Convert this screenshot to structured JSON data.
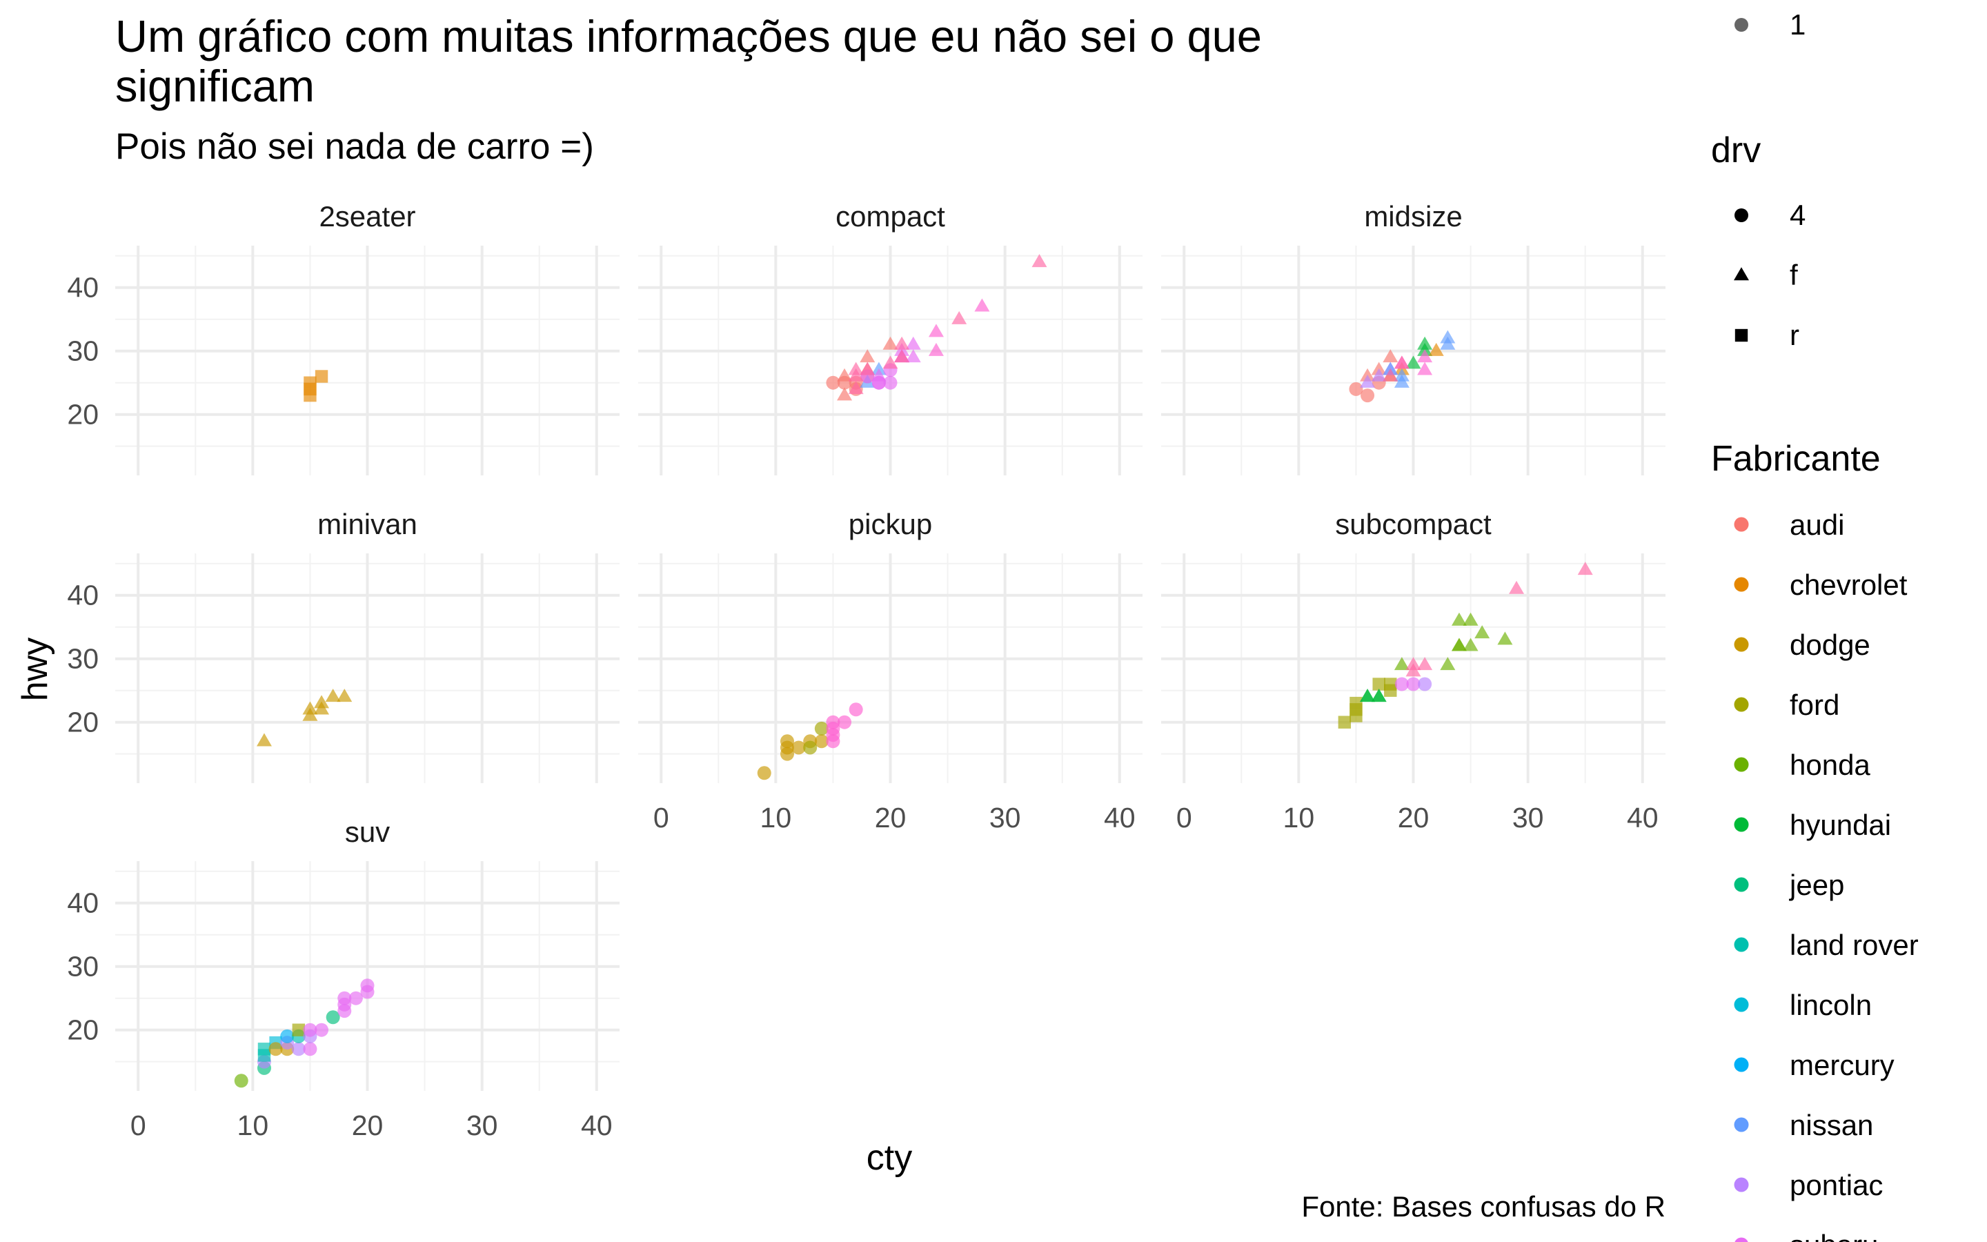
{
  "chart_data": {
    "type": "scatter",
    "title_lines": [
      "Um gráfico com muitas informações que eu não sei o que",
      "significam"
    ],
    "subtitle": "Pois não sei nada de carro =)",
    "caption": "Fonte: Bases confusas do R",
    "xlabel": "cty",
    "ylabel": "hwy",
    "xlim": [
      -2,
      42
    ],
    "ylim": [
      10.4,
      46.6
    ],
    "x_ticks": [
      0,
      10,
      20,
      30,
      40
    ],
    "y_ticks": [
      20,
      30,
      40
    ],
    "grid": true,
    "facets": [
      {
        "name": "2seater",
        "points": [
          {
            "x": 15,
            "y": 23,
            "drv": "r",
            "m": "chevrolet"
          },
          {
            "x": 15,
            "y": 24,
            "drv": "r",
            "m": "chevrolet"
          },
          {
            "x": 15,
            "y": 25,
            "drv": "r",
            "m": "chevrolet"
          },
          {
            "x": 16,
            "y": 26,
            "drv": "r",
            "m": "chevrolet"
          }
        ]
      },
      {
        "name": "compact",
        "points": [
          {
            "x": 16,
            "y": 23,
            "drv": "f",
            "m": "audi"
          },
          {
            "x": 16,
            "y": 26,
            "drv": "f",
            "m": "audi"
          },
          {
            "x": 17,
            "y": 25,
            "drv": "4",
            "m": "audi"
          },
          {
            "x": 18,
            "y": 27,
            "drv": "f",
            "m": "audi"
          },
          {
            "x": 18,
            "y": 29,
            "drv": "f",
            "m": "audi"
          },
          {
            "x": 20,
            "y": 31,
            "drv": "f",
            "m": "audi"
          },
          {
            "x": 21,
            "y": 29,
            "drv": "f",
            "m": "audi"
          },
          {
            "x": 15,
            "y": 25,
            "drv": "4",
            "m": "audi"
          },
          {
            "x": 16,
            "y": 25,
            "drv": "4",
            "m": "audi"
          },
          {
            "x": 17,
            "y": 24,
            "drv": "4",
            "m": "audi"
          },
          {
            "x": 18,
            "y": 26,
            "drv": "4",
            "m": "audi"
          },
          {
            "x": 18,
            "y": 25,
            "drv": "f",
            "m": "nissan"
          },
          {
            "x": 19,
            "y": 27,
            "drv": "f",
            "m": "nissan"
          },
          {
            "x": 21,
            "y": 30,
            "drv": "f",
            "m": "subaru"
          },
          {
            "x": 22,
            "y": 31,
            "drv": "f",
            "m": "subaru"
          },
          {
            "x": 21,
            "y": 29,
            "drv": "f",
            "m": "subaru"
          },
          {
            "x": 22,
            "y": 29,
            "drv": "f",
            "m": "subaru"
          },
          {
            "x": 24,
            "y": 33,
            "drv": "f",
            "m": "toyota"
          },
          {
            "x": 24,
            "y": 30,
            "drv": "f",
            "m": "toyota"
          },
          {
            "x": 26,
            "y": 35,
            "drv": "f",
            "m": "volkswagen"
          },
          {
            "x": 28,
            "y": 37,
            "drv": "f",
            "m": "toyota"
          },
          {
            "x": 33,
            "y": 44,
            "drv": "f",
            "m": "volkswagen"
          },
          {
            "x": 17,
            "y": 27,
            "drv": "f",
            "m": "volkswagen"
          },
          {
            "x": 17,
            "y": 24,
            "drv": "f",
            "m": "volkswagen"
          },
          {
            "x": 18,
            "y": 26,
            "drv": "4",
            "m": "subaru"
          },
          {
            "x": 19,
            "y": 26,
            "drv": "f",
            "m": "subaru"
          },
          {
            "x": 19,
            "y": 25,
            "drv": "4",
            "m": "subaru"
          },
          {
            "x": 20,
            "y": 25,
            "drv": "4",
            "m": "subaru"
          },
          {
            "x": 19,
            "y": 25,
            "drv": "4",
            "m": "subaru"
          },
          {
            "x": 20,
            "y": 27,
            "drv": "4",
            "m": "subaru"
          },
          {
            "x": 20,
            "y": 28,
            "drv": "f",
            "m": "volkswagen"
          },
          {
            "x": 21,
            "y": 29,
            "drv": "f",
            "m": "volkswagen"
          },
          {
            "x": 21,
            "y": 31,
            "drv": "f",
            "m": "volkswagen"
          },
          {
            "x": 17,
            "y": 26,
            "drv": "f",
            "m": "volkswagen"
          },
          {
            "x": 18,
            "y": 27,
            "drv": "f",
            "m": "volkswagen"
          }
        ]
      },
      {
        "name": "midsize",
        "points": [
          {
            "x": 15,
            "y": 24,
            "drv": "4",
            "m": "audi"
          },
          {
            "x": 16,
            "y": 23,
            "drv": "4",
            "m": "audi"
          },
          {
            "x": 17,
            "y": 25,
            "drv": "4",
            "m": "audi"
          },
          {
            "x": 16,
            "y": 26,
            "drv": "f",
            "m": "audi"
          },
          {
            "x": 17,
            "y": 27,
            "drv": "f",
            "m": "audi"
          },
          {
            "x": 18,
            "y": 29,
            "drv": "f",
            "m": "audi"
          },
          {
            "x": 18,
            "y": 26,
            "drv": "f",
            "m": "chevrolet"
          },
          {
            "x": 19,
            "y": 27,
            "drv": "f",
            "m": "chevrolet"
          },
          {
            "x": 21,
            "y": 30,
            "drv": "f",
            "m": "hyundai"
          },
          {
            "x": 21,
            "y": 31,
            "drv": "f",
            "m": "hyundai"
          },
          {
            "x": 20,
            "y": 28,
            "drv": "f",
            "m": "hyundai"
          },
          {
            "x": 18,
            "y": 27,
            "drv": "f",
            "m": "pontiac"
          },
          {
            "x": 17,
            "y": 26,
            "drv": "f",
            "m": "pontiac"
          },
          {
            "x": 16,
            "y": 25,
            "drv": "f",
            "m": "pontiac"
          },
          {
            "x": 19,
            "y": 25,
            "drv": "f",
            "m": "nissan"
          },
          {
            "x": 19,
            "y": 26,
            "drv": "f",
            "m": "nissan"
          },
          {
            "x": 18,
            "y": 27,
            "drv": "f",
            "m": "nissan"
          },
          {
            "x": 23,
            "y": 31,
            "drv": "f",
            "m": "nissan"
          },
          {
            "x": 23,
            "y": 32,
            "drv": "f",
            "m": "nissan"
          },
          {
            "x": 19,
            "y": 28,
            "drv": "f",
            "m": "toyota"
          },
          {
            "x": 21,
            "y": 27,
            "drv": "f",
            "m": "toyota"
          },
          {
            "x": 21,
            "y": 29,
            "drv": "f",
            "m": "toyota"
          },
          {
            "x": 22,
            "y": 30,
            "drv": "f",
            "m": "chevrolet"
          },
          {
            "x": 18,
            "y": 26,
            "drv": "f",
            "m": "volkswagen"
          },
          {
            "x": 19,
            "y": 28,
            "drv": "f",
            "m": "volkswagen"
          }
        ]
      },
      {
        "name": "minivan",
        "points": [
          {
            "x": 11,
            "y": 17,
            "drv": "f",
            "m": "dodge"
          },
          {
            "x": 15,
            "y": 21,
            "drv": "f",
            "m": "dodge"
          },
          {
            "x": 15,
            "y": 22,
            "drv": "f",
            "m": "dodge"
          },
          {
            "x": 16,
            "y": 22,
            "drv": "f",
            "m": "dodge"
          },
          {
            "x": 16,
            "y": 23,
            "drv": "f",
            "m": "dodge"
          },
          {
            "x": 17,
            "y": 24,
            "drv": "f",
            "m": "dodge"
          },
          {
            "x": 18,
            "y": 24,
            "drv": "f",
            "m": "dodge"
          }
        ]
      },
      {
        "name": "pickup",
        "points": [
          {
            "x": 9,
            "y": 12,
            "drv": "4",
            "m": "dodge"
          },
          {
            "x": 11,
            "y": 15,
            "drv": "4",
            "m": "dodge"
          },
          {
            "x": 11,
            "y": 16,
            "drv": "4",
            "m": "dodge"
          },
          {
            "x": 11,
            "y": 17,
            "drv": "4",
            "m": "dodge"
          },
          {
            "x": 12,
            "y": 16,
            "drv": "4",
            "m": "dodge"
          },
          {
            "x": 13,
            "y": 17,
            "drv": "4",
            "m": "dodge"
          },
          {
            "x": 14,
            "y": 17,
            "drv": "4",
            "m": "dodge"
          },
          {
            "x": 13,
            "y": 16,
            "drv": "4",
            "m": "ford"
          },
          {
            "x": 14,
            "y": 19,
            "drv": "4",
            "m": "ford"
          },
          {
            "x": 15,
            "y": 17,
            "drv": "4",
            "m": "toyota"
          },
          {
            "x": 15,
            "y": 18,
            "drv": "4",
            "m": "toyota"
          },
          {
            "x": 15,
            "y": 19,
            "drv": "4",
            "m": "toyota"
          },
          {
            "x": 15,
            "y": 20,
            "drv": "4",
            "m": "toyota"
          },
          {
            "x": 16,
            "y": 20,
            "drv": "4",
            "m": "toyota"
          },
          {
            "x": 17,
            "y": 22,
            "drv": "4",
            "m": "toyota"
          }
        ]
      },
      {
        "name": "subcompact",
        "points": [
          {
            "x": 14,
            "y": 20,
            "drv": "r",
            "m": "ford"
          },
          {
            "x": 15,
            "y": 21,
            "drv": "r",
            "m": "ford"
          },
          {
            "x": 15,
            "y": 22,
            "drv": "r",
            "m": "ford"
          },
          {
            "x": 15,
            "y": 23,
            "drv": "r",
            "m": "ford"
          },
          {
            "x": 17,
            "y": 26,
            "drv": "r",
            "m": "ford"
          },
          {
            "x": 18,
            "y": 25,
            "drv": "r",
            "m": "ford"
          },
          {
            "x": 18,
            "y": 26,
            "drv": "r",
            "m": "ford"
          },
          {
            "x": 16,
            "y": 24,
            "drv": "f",
            "m": "hyundai"
          },
          {
            "x": 17,
            "y": 24,
            "drv": "f",
            "m": "hyundai"
          },
          {
            "x": 17,
            "y": 24,
            "drv": "f",
            "m": "hyundai"
          },
          {
            "x": 16,
            "y": 24,
            "drv": "f",
            "m": "hyundai"
          },
          {
            "x": 19,
            "y": 29,
            "drv": "f",
            "m": "honda"
          },
          {
            "x": 24,
            "y": 32,
            "drv": "f",
            "m": "honda"
          },
          {
            "x": 24,
            "y": 36,
            "drv": "f",
            "m": "honda"
          },
          {
            "x": 25,
            "y": 32,
            "drv": "f",
            "m": "honda"
          },
          {
            "x": 23,
            "y": 29,
            "drv": "f",
            "m": "honda"
          },
          {
            "x": 24,
            "y": 32,
            "drv": "f",
            "m": "honda"
          },
          {
            "x": 25,
            "y": 36,
            "drv": "f",
            "m": "honda"
          },
          {
            "x": 26,
            "y": 34,
            "drv": "f",
            "m": "honda"
          },
          {
            "x": 28,
            "y": 33,
            "drv": "f",
            "m": "honda"
          },
          {
            "x": 19,
            "y": 26,
            "drv": "4",
            "m": "subaru"
          },
          {
            "x": 20,
            "y": 26,
            "drv": "4",
            "m": "subaru"
          },
          {
            "x": 20,
            "y": 28,
            "drv": "f",
            "m": "volkswagen"
          },
          {
            "x": 20,
            "y": 29,
            "drv": "f",
            "m": "volkswagen"
          },
          {
            "x": 21,
            "y": 29,
            "drv": "f",
            "m": "volkswagen"
          },
          {
            "x": 21,
            "y": 26,
            "drv": "4",
            "m": "pontiac"
          },
          {
            "x": 29,
            "y": 41,
            "drv": "f",
            "m": "volkswagen"
          },
          {
            "x": 35,
            "y": 44,
            "drv": "f",
            "m": "volkswagen"
          }
        ]
      },
      {
        "name": "suv",
        "points": [
          {
            "x": 9,
            "y": 12,
            "drv": "4",
            "m": "honda"
          },
          {
            "x": 11,
            "y": 14,
            "drv": "4",
            "m": "jeep"
          },
          {
            "x": 11,
            "y": 15,
            "drv": "4",
            "m": "pontiac"
          },
          {
            "x": 11,
            "y": 16,
            "drv": "r",
            "m": "land rover"
          },
          {
            "x": 11,
            "y": 17,
            "drv": "r",
            "m": "land rover"
          },
          {
            "x": 12,
            "y": 18,
            "drv": "r",
            "m": "lincoln"
          },
          {
            "x": 12,
            "y": 17,
            "drv": "4",
            "m": "dodge"
          },
          {
            "x": 13,
            "y": 17,
            "drv": "4",
            "m": "dodge"
          },
          {
            "x": 13,
            "y": 18,
            "drv": "4",
            "m": "pontiac"
          },
          {
            "x": 13,
            "y": 19,
            "drv": "4",
            "m": "mercury"
          },
          {
            "x": 14,
            "y": 17,
            "drv": "4",
            "m": "pontiac"
          },
          {
            "x": 14,
            "y": 19,
            "drv": "4",
            "m": "land rover"
          },
          {
            "x": 14,
            "y": 20,
            "drv": "r",
            "m": "ford"
          },
          {
            "x": 15,
            "y": 17,
            "drv": "4",
            "m": "subaru"
          },
          {
            "x": 15,
            "y": 19,
            "drv": "4",
            "m": "pontiac"
          },
          {
            "x": 15,
            "y": 20,
            "drv": "4",
            "m": "subaru"
          },
          {
            "x": 16,
            "y": 20,
            "drv": "4",
            "m": "subaru"
          },
          {
            "x": 17,
            "y": 22,
            "drv": "4",
            "m": "jeep"
          },
          {
            "x": 18,
            "y": 23,
            "drv": "4",
            "m": "subaru"
          },
          {
            "x": 18,
            "y": 24,
            "drv": "4",
            "m": "subaru"
          },
          {
            "x": 18,
            "y": 25,
            "drv": "4",
            "m": "subaru"
          },
          {
            "x": 19,
            "y": 25,
            "drv": "4",
            "m": "subaru"
          },
          {
            "x": 20,
            "y": 26,
            "drv": "4",
            "m": "subaru"
          },
          {
            "x": 20,
            "y": 27,
            "drv": "4",
            "m": "subaru"
          }
        ]
      }
    ],
    "legend_size": {
      "label": "1"
    },
    "legend_drv": {
      "title": "drv",
      "items": [
        {
          "label": "4",
          "shape": "circle"
        },
        {
          "label": "f",
          "shape": "triangle"
        },
        {
          "label": "r",
          "shape": "square"
        }
      ]
    },
    "legend_fabricante": {
      "title": "Fabricante",
      "items": [
        {
          "label": "audi",
          "color": "#F8766D"
        },
        {
          "label": "chevrolet",
          "color": "#E58700"
        },
        {
          "label": "dodge",
          "color": "#C99800"
        },
        {
          "label": "ford",
          "color": "#A3A500"
        },
        {
          "label": "honda",
          "color": "#6BB100"
        },
        {
          "label": "hyundai",
          "color": "#00BA38"
        },
        {
          "label": "jeep",
          "color": "#00BF7D"
        },
        {
          "label": "land rover",
          "color": "#00C0AF"
        },
        {
          "label": "lincoln",
          "color": "#00BCD8"
        },
        {
          "label": "mercury",
          "color": "#00B0F6"
        },
        {
          "label": "nissan",
          "color": "#619CFF"
        },
        {
          "label": "pontiac",
          "color": "#B983FF"
        },
        {
          "label": "subaru",
          "color": "#E76BF3"
        }
      ]
    },
    "extra_colors": {
      "toyota": "#FD61D1",
      "volkswagen": "#FF67A4"
    }
  }
}
